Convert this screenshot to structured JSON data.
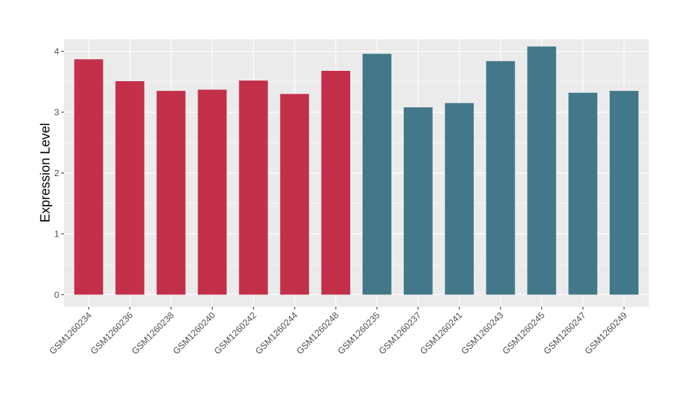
{
  "chart_data": {
    "type": "bar",
    "title": "",
    "xlabel": "",
    "ylabel": "Expression Level",
    "ylim": [
      -0.2,
      4.2
    ],
    "yticks": [
      0,
      1,
      2,
      3,
      4
    ],
    "ytick_labels": [
      "0",
      "1",
      "2",
      "3",
      "4"
    ],
    "grid": true,
    "legend": "none",
    "background_color": "#EBEBEB",
    "grid_color": "#FFFFFF",
    "categories": [
      "GSM1260234",
      "GSM1260236",
      "GSM1260238",
      "GSM1260240",
      "GSM1260242",
      "GSM1260244",
      "GSM1260248",
      "GSM1260235",
      "GSM1260237",
      "GSM1260241",
      "GSM1260243",
      "GSM1260245",
      "GSM1260247",
      "GSM1260249"
    ],
    "values": [
      3.87,
      3.51,
      3.35,
      3.37,
      3.52,
      3.3,
      3.68,
      3.96,
      3.08,
      3.15,
      3.84,
      4.08,
      3.32,
      3.35
    ],
    "groups": [
      {
        "color": "#C3304A",
        "categories": [
          "GSM1260234",
          "GSM1260236",
          "GSM1260238",
          "GSM1260240",
          "GSM1260242",
          "GSM1260244",
          "GSM1260248"
        ]
      },
      {
        "color": "#42788A",
        "categories": [
          "GSM1260235",
          "GSM1260237",
          "GSM1260241",
          "GSM1260243",
          "GSM1260245",
          "GSM1260247",
          "GSM1260249"
        ]
      }
    ]
  }
}
